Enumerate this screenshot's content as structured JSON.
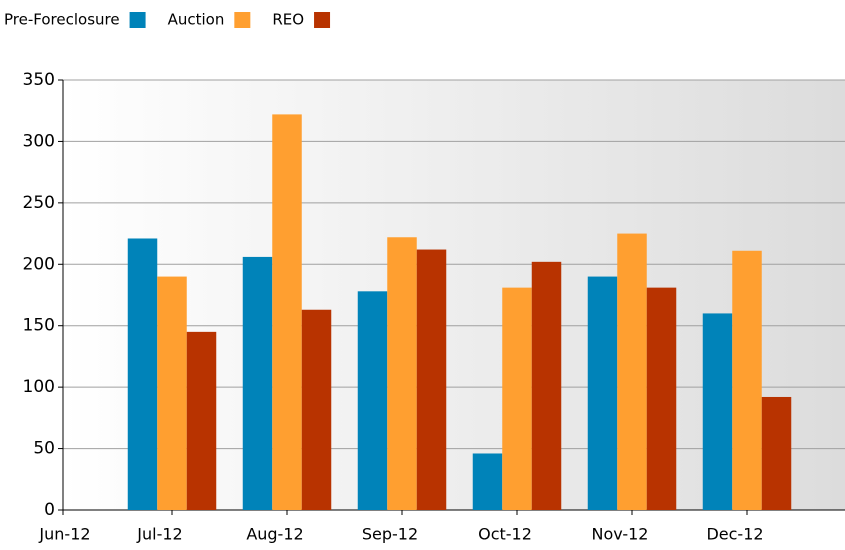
{
  "chart_data": {
    "type": "bar",
    "categories": [
      "Jun-12",
      "Jul-12",
      "Aug-12",
      "Sep-12",
      "Oct-12",
      "Nov-12",
      "Dec-12"
    ],
    "series": [
      {
        "name": "Pre-Foreclosure",
        "color": "#0083b9",
        "values": [
          null,
          221,
          206,
          178,
          46,
          190,
          160
        ]
      },
      {
        "name": "Auction",
        "color": "#ff9f30",
        "values": [
          null,
          190,
          322,
          222,
          181,
          225,
          211
        ]
      },
      {
        "name": "REO",
        "color": "#b83300",
        "values": [
          null,
          145,
          163,
          212,
          202,
          181,
          92
        ]
      }
    ],
    "ylim": [
      0,
      350
    ],
    "yticks": [
      0,
      50,
      100,
      150,
      200,
      250,
      300,
      350
    ],
    "grid": true,
    "legend": "top-left"
  }
}
